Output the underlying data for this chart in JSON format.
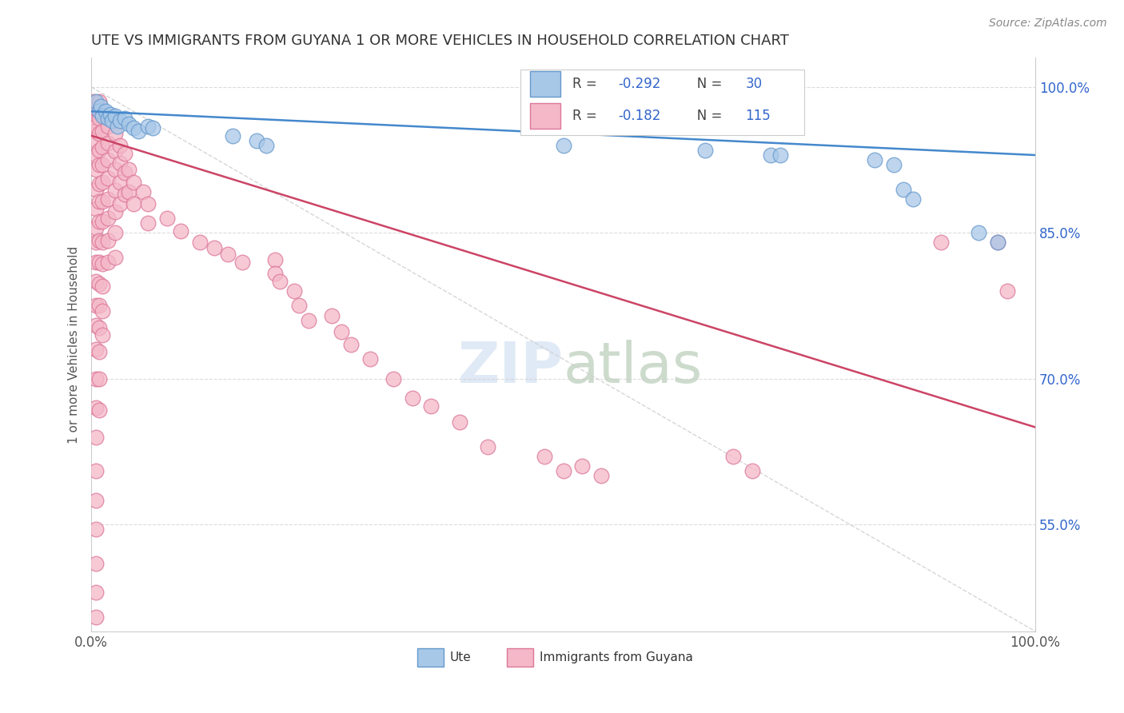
{
  "title": "UTE VS IMMIGRANTS FROM GUYANA 1 OR MORE VEHICLES IN HOUSEHOLD CORRELATION CHART",
  "source_text": "Source: ZipAtlas.com",
  "ylabel": "1 or more Vehicles in Household",
  "xlim": [
    0.0,
    1.0
  ],
  "ylim": [
    0.44,
    1.03
  ],
  "ytick_positions": [
    0.55,
    0.7,
    0.85,
    1.0
  ],
  "ytick_labels": [
    "55.0%",
    "70.0%",
    "85.0%",
    "100.0%"
  ],
  "ute_color": "#a8c8e8",
  "ute_edge": "#6699cc",
  "guyana_color": "#f4b8c8",
  "guyana_edge": "#dd7799",
  "background_color": "#ffffff",
  "grid_color": "#cccccc",
  "regression_line_blue": "#4488cc",
  "regression_line_pink": "#cc4466",
  "ref_line_color": "#cccccc",
  "legend_text_color": "#3366cc",
  "title_color": "#333333",
  "ylabel_color": "#555555",
  "tick_color": "#3366cc",
  "source_color": "#888888",
  "ute_scatter": [
    [
      0.005,
      0.985
    ],
    [
      0.008,
      0.975
    ],
    [
      0.01,
      0.98
    ],
    [
      0.012,
      0.97
    ],
    [
      0.015,
      0.975
    ],
    [
      0.018,
      0.968
    ],
    [
      0.02,
      0.972
    ],
    [
      0.022,
      0.965
    ],
    [
      0.025,
      0.97
    ],
    [
      0.028,
      0.96
    ],
    [
      0.03,
      0.965
    ],
    [
      0.035,
      0.968
    ],
    [
      0.04,
      0.962
    ],
    [
      0.045,
      0.958
    ],
    [
      0.05,
      0.955
    ],
    [
      0.06,
      0.96
    ],
    [
      0.065,
      0.958
    ],
    [
      0.15,
      0.95
    ],
    [
      0.175,
      0.945
    ],
    [
      0.185,
      0.94
    ],
    [
      0.5,
      0.94
    ],
    [
      0.65,
      0.935
    ],
    [
      0.72,
      0.93
    ],
    [
      0.73,
      0.93
    ],
    [
      0.83,
      0.925
    ],
    [
      0.85,
      0.92
    ],
    [
      0.86,
      0.895
    ],
    [
      0.87,
      0.885
    ],
    [
      0.94,
      0.85
    ],
    [
      0.96,
      0.84
    ]
  ],
  "guyana_scatter": [
    [
      0.002,
      0.985
    ],
    [
      0.003,
      0.975
    ],
    [
      0.004,
      0.965
    ],
    [
      0.004,
      0.955
    ],
    [
      0.005,
      0.978
    ],
    [
      0.005,
      0.96
    ],
    [
      0.005,
      0.945
    ],
    [
      0.005,
      0.93
    ],
    [
      0.005,
      0.915
    ],
    [
      0.005,
      0.895
    ],
    [
      0.005,
      0.875
    ],
    [
      0.005,
      0.855
    ],
    [
      0.005,
      0.84
    ],
    [
      0.005,
      0.82
    ],
    [
      0.005,
      0.8
    ],
    [
      0.005,
      0.775
    ],
    [
      0.005,
      0.755
    ],
    [
      0.005,
      0.73
    ],
    [
      0.005,
      0.7
    ],
    [
      0.005,
      0.67
    ],
    [
      0.005,
      0.64
    ],
    [
      0.005,
      0.605
    ],
    [
      0.005,
      0.575
    ],
    [
      0.005,
      0.545
    ],
    [
      0.005,
      0.51
    ],
    [
      0.005,
      0.48
    ],
    [
      0.005,
      0.455
    ],
    [
      0.008,
      0.985
    ],
    [
      0.008,
      0.968
    ],
    [
      0.008,
      0.952
    ],
    [
      0.008,
      0.935
    ],
    [
      0.008,
      0.92
    ],
    [
      0.008,
      0.9
    ],
    [
      0.008,
      0.882
    ],
    [
      0.008,
      0.862
    ],
    [
      0.008,
      0.842
    ],
    [
      0.008,
      0.82
    ],
    [
      0.008,
      0.798
    ],
    [
      0.008,
      0.775
    ],
    [
      0.008,
      0.752
    ],
    [
      0.008,
      0.728
    ],
    [
      0.008,
      0.7
    ],
    [
      0.008,
      0.668
    ],
    [
      0.012,
      0.972
    ],
    [
      0.012,
      0.955
    ],
    [
      0.012,
      0.938
    ],
    [
      0.012,
      0.92
    ],
    [
      0.012,
      0.902
    ],
    [
      0.012,
      0.882
    ],
    [
      0.012,
      0.862
    ],
    [
      0.012,
      0.84
    ],
    [
      0.012,
      0.818
    ],
    [
      0.012,
      0.795
    ],
    [
      0.012,
      0.77
    ],
    [
      0.012,
      0.745
    ],
    [
      0.018,
      0.96
    ],
    [
      0.018,
      0.942
    ],
    [
      0.018,
      0.925
    ],
    [
      0.018,
      0.906
    ],
    [
      0.018,
      0.885
    ],
    [
      0.018,
      0.865
    ],
    [
      0.018,
      0.842
    ],
    [
      0.018,
      0.82
    ],
    [
      0.025,
      0.952
    ],
    [
      0.025,
      0.934
    ],
    [
      0.025,
      0.915
    ],
    [
      0.025,
      0.894
    ],
    [
      0.025,
      0.872
    ],
    [
      0.025,
      0.85
    ],
    [
      0.025,
      0.825
    ],
    [
      0.03,
      0.94
    ],
    [
      0.03,
      0.922
    ],
    [
      0.03,
      0.902
    ],
    [
      0.03,
      0.88
    ],
    [
      0.035,
      0.932
    ],
    [
      0.035,
      0.912
    ],
    [
      0.035,
      0.89
    ],
    [
      0.04,
      0.915
    ],
    [
      0.04,
      0.892
    ],
    [
      0.045,
      0.902
    ],
    [
      0.045,
      0.88
    ],
    [
      0.055,
      0.892
    ],
    [
      0.06,
      0.88
    ],
    [
      0.06,
      0.86
    ],
    [
      0.08,
      0.865
    ],
    [
      0.095,
      0.852
    ],
    [
      0.115,
      0.84
    ],
    [
      0.13,
      0.835
    ],
    [
      0.145,
      0.828
    ],
    [
      0.16,
      0.82
    ],
    [
      0.195,
      0.822
    ],
    [
      0.195,
      0.808
    ],
    [
      0.2,
      0.8
    ],
    [
      0.215,
      0.79
    ],
    [
      0.22,
      0.775
    ],
    [
      0.23,
      0.76
    ],
    [
      0.255,
      0.765
    ],
    [
      0.265,
      0.748
    ],
    [
      0.275,
      0.735
    ],
    [
      0.295,
      0.72
    ],
    [
      0.32,
      0.7
    ],
    [
      0.34,
      0.68
    ],
    [
      0.36,
      0.672
    ],
    [
      0.39,
      0.655
    ],
    [
      0.42,
      0.63
    ],
    [
      0.48,
      0.62
    ],
    [
      0.5,
      0.605
    ],
    [
      0.52,
      0.61
    ],
    [
      0.54,
      0.6
    ],
    [
      0.68,
      0.62
    ],
    [
      0.7,
      0.605
    ],
    [
      0.9,
      0.84
    ],
    [
      0.96,
      0.84
    ],
    [
      0.97,
      0.79
    ]
  ]
}
